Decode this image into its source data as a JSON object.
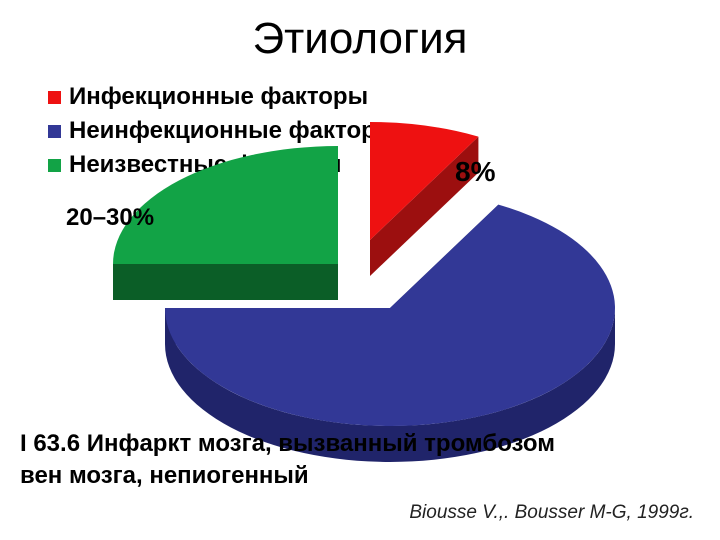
{
  "slide": {
    "title": "Этиология",
    "caption_line1": "I 63.6 Инфаркт мозга, вызванный тромбозом",
    "caption_line2": "вен мозга, непиогенный",
    "citation": "Biousse V.,. Bousser M-G, 1999г."
  },
  "chart_data": {
    "type": "pie",
    "style": "3d-exploded",
    "legend_position": "top-left",
    "series": [
      {
        "name": "Инфекционные факторы",
        "value": 8,
        "label": "8%",
        "color": "#ee1111",
        "side_color": "#9c0f0f"
      },
      {
        "name": "Неинфекционные факторы",
        "value": 67,
        "label": "",
        "color": "#323896",
        "side_color": "#20246a"
      },
      {
        "name": "Неизвестные факторы",
        "value": 25,
        "label": "20–30%",
        "color": "#12a346",
        "side_color": "#0b5e27"
      }
    ]
  }
}
